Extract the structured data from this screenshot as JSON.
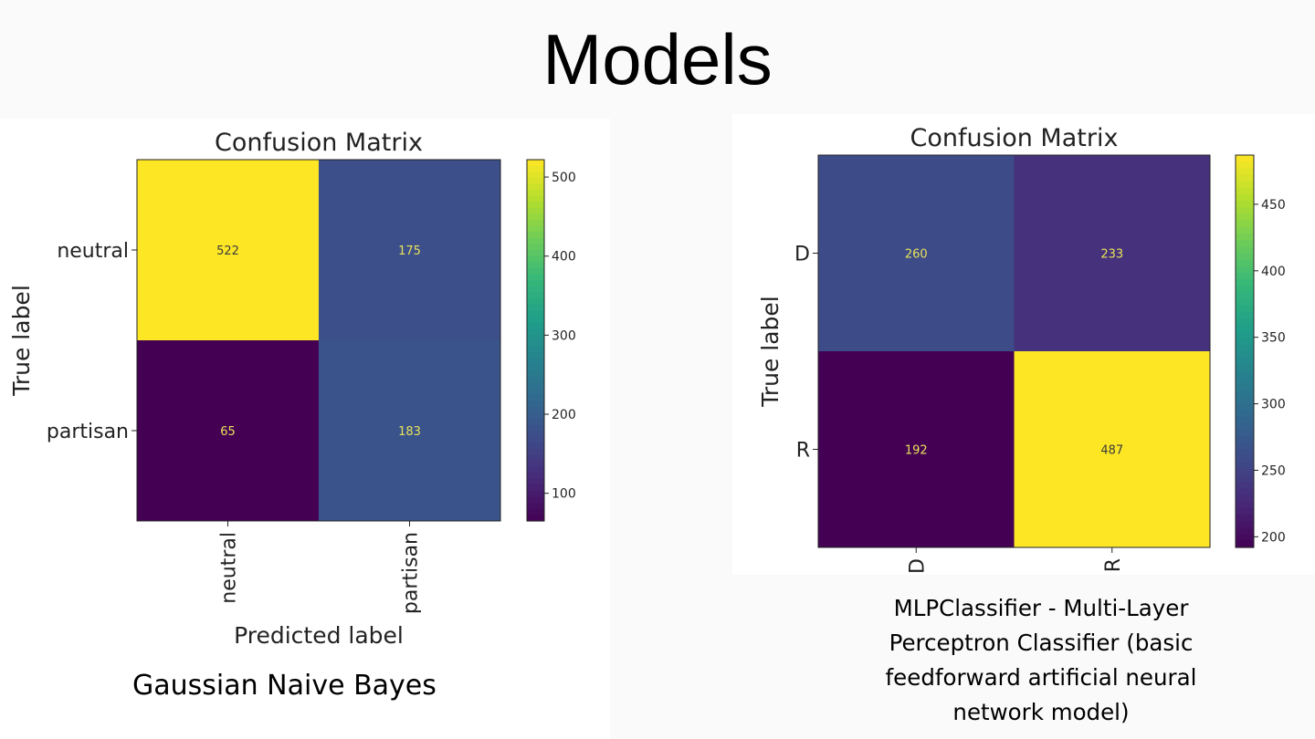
{
  "slide": {
    "title": "Models",
    "captions": [
      "Gaussian Naive Bayes",
      "MLPClassifier - Multi-Layer Perceptron Classifier (basic feedforward artificial neural network model)"
    ]
  },
  "chart_data": [
    {
      "type": "heatmap",
      "title": "Confusion Matrix",
      "xlabel": "Predicted label",
      "ylabel": "True label",
      "x_categories": [
        "neutral",
        "partisan"
      ],
      "y_categories": [
        "neutral",
        "partisan"
      ],
      "values": [
        [
          522,
          175
        ],
        [
          65,
          183
        ]
      ],
      "colormap": "viridis",
      "colorbar_ticks": [
        100,
        200,
        300,
        400,
        500
      ],
      "vmin": 65,
      "vmax": 522
    },
    {
      "type": "heatmap",
      "title": "Confusion Matrix",
      "xlabel": "",
      "ylabel": "True label",
      "x_categories": [
        "D",
        "R"
      ],
      "y_categories": [
        "D",
        "R"
      ],
      "values": [
        [
          260,
          233
        ],
        [
          192,
          487
        ]
      ],
      "colormap": "viridis",
      "colorbar_ticks": [
        200,
        250,
        300,
        350,
        400,
        450
      ],
      "vmin": 192,
      "vmax": 487
    }
  ]
}
